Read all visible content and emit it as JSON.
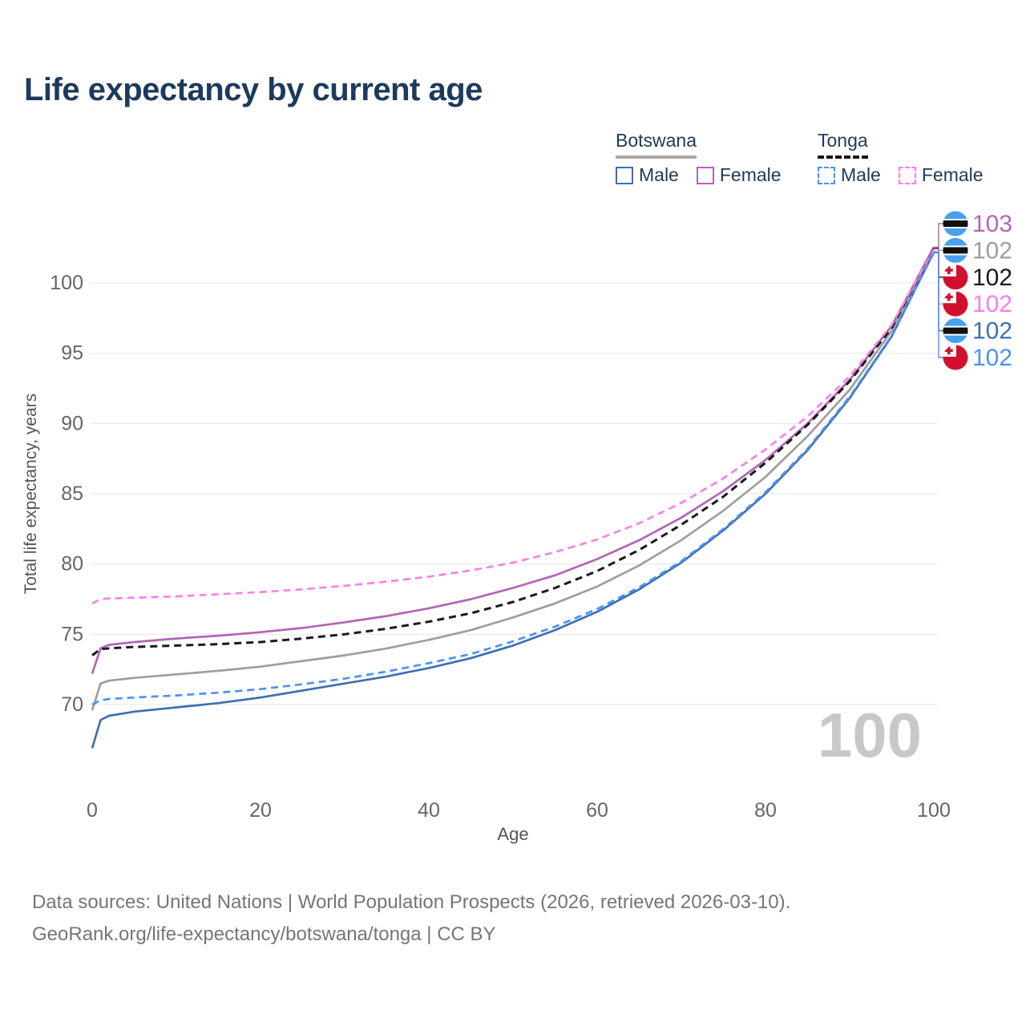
{
  "title": "Life expectancy by current age",
  "legend": {
    "botswana": {
      "label": "Botswana",
      "male_label": "Male",
      "female_label": "Female"
    },
    "tonga": {
      "label": "Tonga",
      "male_label": "Male",
      "female_label": "Female"
    }
  },
  "colors": {
    "botswana_male": "#3e6fb2",
    "botswana_female": "#b166b4",
    "botswana_total": "#9e9e9e",
    "tonga_male": "#4b92f0",
    "tonga_female": "#fc7fe8",
    "tonga_total": "#1a1a1a",
    "title_text": "#1d3a5c",
    "tick_text": "#666666",
    "axis_title_text": "#555555",
    "gridline": "#ececec",
    "watermark": "#c8c8c8",
    "flag_botswana_blue": "#47a1eb",
    "flag_tonga_red": "#d11030",
    "footer_text": "#757575"
  },
  "watermark": "100",
  "axis": {
    "x_title": "Age",
    "y_title": "Total life expectancy, years"
  },
  "chart_data": {
    "type": "line",
    "title": "Life expectancy by current age",
    "xlabel": "Age",
    "ylabel": "Total life expectancy, years",
    "xlim": [
      0,
      100
    ],
    "ylim": [
      70,
      100
    ],
    "xticks": [
      0,
      20,
      40,
      60,
      80,
      100
    ],
    "yticks": [
      70,
      75,
      80,
      85,
      90,
      95,
      100
    ],
    "grid": true,
    "legend_position": "top-right",
    "series": [
      {
        "name": "Botswana Male",
        "key": "botswana_male",
        "country": "Botswana",
        "sex": "Male",
        "style": "solid",
        "points": [
          [
            0,
            66.9
          ],
          [
            1,
            68.9
          ],
          [
            2,
            69.2
          ],
          [
            5,
            69.5
          ],
          [
            10,
            69.8
          ],
          [
            15,
            70.1
          ],
          [
            20,
            70.5
          ],
          [
            25,
            71.0
          ],
          [
            30,
            71.5
          ],
          [
            35,
            72.0
          ],
          [
            40,
            72.6
          ],
          [
            45,
            73.3
          ],
          [
            50,
            74.2
          ],
          [
            55,
            75.3
          ],
          [
            60,
            76.6
          ],
          [
            65,
            78.2
          ],
          [
            70,
            80.1
          ],
          [
            75,
            82.4
          ],
          [
            80,
            85.0
          ],
          [
            85,
            88.1
          ],
          [
            90,
            91.8
          ],
          [
            95,
            96.2
          ],
          [
            100,
            102.2
          ]
        ]
      },
      {
        "name": "Botswana Female",
        "key": "botswana_female",
        "country": "Botswana",
        "sex": "Female",
        "style": "solid",
        "points": [
          [
            0,
            72.2
          ],
          [
            1,
            74.0
          ],
          [
            2,
            74.25
          ],
          [
            5,
            74.45
          ],
          [
            10,
            74.7
          ],
          [
            15,
            74.9
          ],
          [
            20,
            75.15
          ],
          [
            25,
            75.45
          ],
          [
            30,
            75.85
          ],
          [
            35,
            76.3
          ],
          [
            40,
            76.85
          ],
          [
            45,
            77.5
          ],
          [
            50,
            78.3
          ],
          [
            55,
            79.2
          ],
          [
            60,
            80.35
          ],
          [
            65,
            81.7
          ],
          [
            70,
            83.3
          ],
          [
            75,
            85.2
          ],
          [
            80,
            87.4
          ],
          [
            85,
            90.0
          ],
          [
            90,
            93.1
          ],
          [
            95,
            96.95
          ],
          [
            100,
            102.55
          ]
        ]
      },
      {
        "name": "Botswana (both sexes)",
        "key": "botswana_total",
        "country": "Botswana",
        "sex": "Total",
        "style": "solid",
        "points": [
          [
            0,
            69.6
          ],
          [
            1,
            71.5
          ],
          [
            2,
            71.7
          ],
          [
            5,
            71.9
          ],
          [
            10,
            72.15
          ],
          [
            15,
            72.4
          ],
          [
            20,
            72.7
          ],
          [
            25,
            73.1
          ],
          [
            30,
            73.5
          ],
          [
            35,
            74.0
          ],
          [
            40,
            74.6
          ],
          [
            45,
            75.3
          ],
          [
            50,
            76.2
          ],
          [
            55,
            77.2
          ],
          [
            60,
            78.4
          ],
          [
            65,
            79.9
          ],
          [
            70,
            81.7
          ],
          [
            75,
            83.8
          ],
          [
            80,
            86.2
          ],
          [
            85,
            89.1
          ],
          [
            90,
            92.4
          ],
          [
            95,
            96.6
          ],
          [
            100,
            102.5
          ]
        ]
      },
      {
        "name": "Tonga Male",
        "key": "tonga_male",
        "country": "Tonga",
        "sex": "Male",
        "style": "dashed",
        "points": [
          [
            0,
            70.0
          ],
          [
            1,
            70.3
          ],
          [
            2,
            70.4
          ],
          [
            5,
            70.5
          ],
          [
            10,
            70.65
          ],
          [
            15,
            70.85
          ],
          [
            20,
            71.1
          ],
          [
            25,
            71.45
          ],
          [
            30,
            71.85
          ],
          [
            35,
            72.35
          ],
          [
            40,
            72.95
          ],
          [
            45,
            73.6
          ],
          [
            50,
            74.5
          ],
          [
            55,
            75.55
          ],
          [
            60,
            76.8
          ],
          [
            65,
            78.35
          ],
          [
            70,
            80.2
          ],
          [
            75,
            82.5
          ],
          [
            80,
            85.1
          ],
          [
            85,
            88.2
          ],
          [
            90,
            91.9
          ],
          [
            95,
            96.25
          ],
          [
            100,
            102.15
          ]
        ]
      },
      {
        "name": "Tonga Female",
        "key": "tonga_female",
        "country": "Tonga",
        "sex": "Female",
        "style": "dashed",
        "points": [
          [
            0,
            77.2
          ],
          [
            1,
            77.5
          ],
          [
            2,
            77.55
          ],
          [
            5,
            77.6
          ],
          [
            10,
            77.7
          ],
          [
            15,
            77.85
          ],
          [
            20,
            78.0
          ],
          [
            25,
            78.2
          ],
          [
            30,
            78.45
          ],
          [
            35,
            78.75
          ],
          [
            40,
            79.1
          ],
          [
            45,
            79.55
          ],
          [
            50,
            80.1
          ],
          [
            55,
            80.85
          ],
          [
            60,
            81.75
          ],
          [
            65,
            82.9
          ],
          [
            70,
            84.35
          ],
          [
            75,
            86.1
          ],
          [
            80,
            88.15
          ],
          [
            85,
            90.5
          ],
          [
            90,
            93.35
          ],
          [
            95,
            97.0
          ],
          [
            100,
            102.4
          ]
        ]
      },
      {
        "name": "Tonga (both sexes)",
        "key": "tonga_total",
        "country": "Tonga",
        "sex": "Total",
        "style": "dashed",
        "points": [
          [
            0,
            73.5
          ],
          [
            1,
            73.95
          ],
          [
            2,
            74.0
          ],
          [
            5,
            74.1
          ],
          [
            10,
            74.2
          ],
          [
            15,
            74.3
          ],
          [
            20,
            74.45
          ],
          [
            25,
            74.7
          ],
          [
            30,
            75.0
          ],
          [
            35,
            75.4
          ],
          [
            40,
            75.9
          ],
          [
            45,
            76.5
          ],
          [
            50,
            77.3
          ],
          [
            55,
            78.3
          ],
          [
            60,
            79.5
          ],
          [
            65,
            81.0
          ],
          [
            70,
            82.8
          ],
          [
            75,
            84.8
          ],
          [
            80,
            87.2
          ],
          [
            85,
            89.9
          ],
          [
            90,
            93.0
          ],
          [
            95,
            96.8
          ],
          [
            100,
            102.45
          ]
        ]
      }
    ]
  },
  "end_labels": [
    {
      "value": "103",
      "series": "botswana_female",
      "flag": "botswana",
      "color": "#b166b4"
    },
    {
      "value": "102",
      "series": "botswana_total",
      "flag": "botswana",
      "color": "#9e9e9e"
    },
    {
      "value": "102",
      "series": "tonga_total",
      "flag": "tonga",
      "color": "#1a1a1a"
    },
    {
      "value": "102",
      "series": "tonga_female",
      "flag": "tonga",
      "color": "#fc7fe8"
    },
    {
      "value": "102",
      "series": "botswana_male",
      "flag": "botswana",
      "color": "#3e6fb2"
    },
    {
      "value": "102",
      "series": "tonga_male",
      "flag": "tonga",
      "color": "#4b92f0"
    }
  ],
  "footer": {
    "line1": "Data sources: United Nations | World Population Prospects (2026, retrieved 2026-03-10).",
    "line2": "GeoRank.org/life-expectancy/botswana/tonga | CC BY"
  }
}
